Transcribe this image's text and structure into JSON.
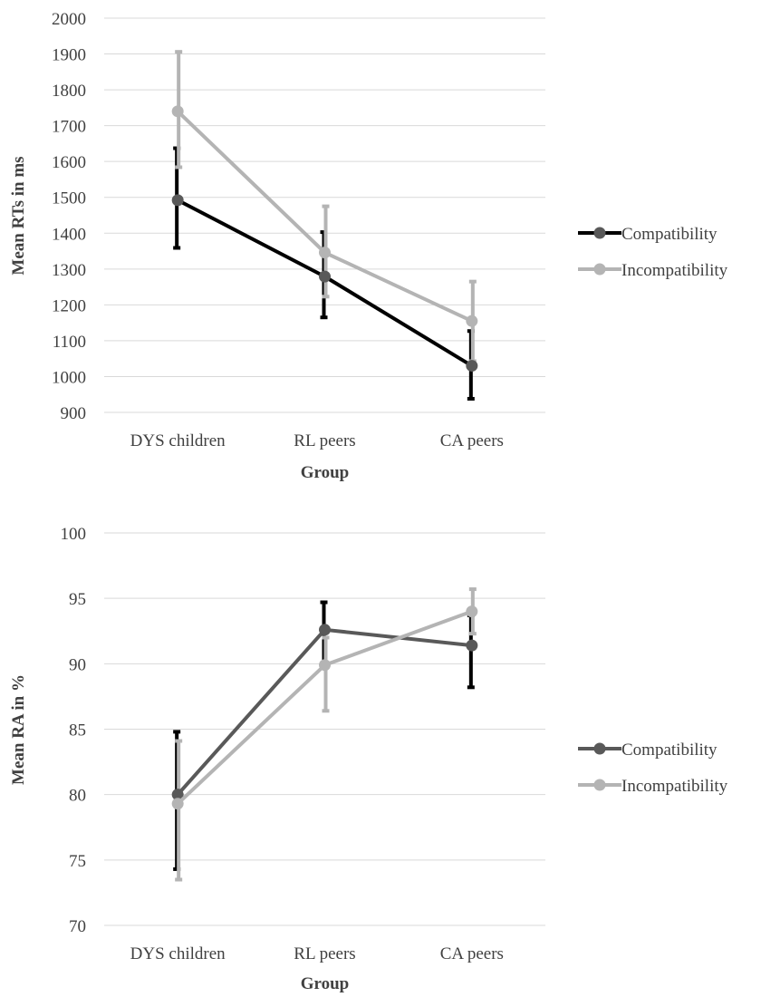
{
  "chart_data": [
    {
      "type": "line",
      "title": "",
      "xlabel": "Group",
      "ylabel": "Mean RTs in ms",
      "categories": [
        "DYS children",
        "RL peers",
        "CA peers"
      ],
      "ylim": [
        900,
        2000
      ],
      "ytick_step": 100,
      "grid": true,
      "legend_position": "right",
      "series": [
        {
          "name": "Compatibility",
          "values": [
            1492,
            1279,
            1030
          ],
          "error_upper": [
            1637,
            1403,
            1127
          ],
          "error_lower": [
            1359,
            1165,
            938
          ],
          "line_color": "#000000",
          "marker_color": "#595959",
          "error_color": "#000000"
        },
        {
          "name": "Incompatibility",
          "values": [
            1740,
            1346,
            1155
          ],
          "error_upper": [
            1906,
            1475,
            1265
          ],
          "error_lower": [
            1584,
            1223,
            1043
          ],
          "line_color": "#b4b4b4",
          "marker_color": "#b4b4b4",
          "error_color": "#b4b4b4"
        }
      ]
    },
    {
      "type": "line",
      "title": "",
      "xlabel": "Group",
      "ylabel": "Mean RA in %",
      "categories": [
        "DYS children",
        "RL peers",
        "CA peers"
      ],
      "ylim": [
        70,
        100
      ],
      "ytick_step": 5,
      "grid": true,
      "legend_position": "right",
      "series": [
        {
          "name": "Compatibility",
          "values": [
            80.0,
            92.6,
            91.4
          ],
          "error_upper": [
            84.8,
            94.7,
            93.7
          ],
          "error_lower": [
            74.3,
            89.8,
            88.2
          ],
          "line_color": "#595959",
          "marker_color": "#595959",
          "error_color": "#000000"
        },
        {
          "name": "Incompatibility",
          "values": [
            79.3,
            89.9,
            94.0
          ],
          "error_upper": [
            84.1,
            92.0,
            95.7
          ],
          "error_lower": [
            73.5,
            86.4,
            92.3
          ],
          "line_color": "#b4b4b4",
          "marker_color": "#b4b4b4",
          "error_color": "#b4b4b4"
        }
      ]
    }
  ]
}
